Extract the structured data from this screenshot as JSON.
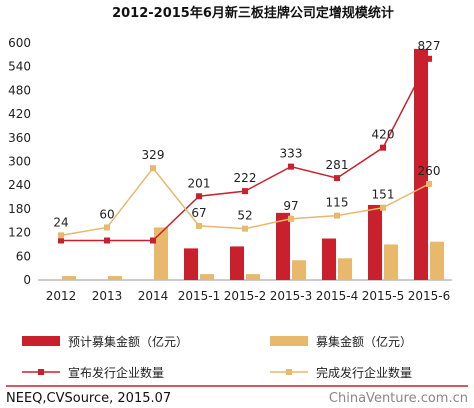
{
  "chart_data": {
    "type": "bar",
    "title": "2012-2015年6月新三板挂牌公司定增规模统计",
    "categories": [
      "2012",
      "2013",
      "2014",
      "2015-1",
      "2015-2",
      "2015-3",
      "2015-4",
      "2015-5",
      "2015-6"
    ],
    "ylim": [
      0,
      600
    ],
    "yticks": [
      0,
      60,
      120,
      180,
      240,
      300,
      360,
      420,
      480,
      540,
      600
    ],
    "grid": false,
    "legend_position": "bottom",
    "bar_series": [
      {
        "name": "预计募集金额（亿元）",
        "color": "#c8202c",
        "values": [
          0,
          0,
          0,
          80,
          85,
          170,
          105,
          190,
          585
        ]
      },
      {
        "name": "募集金额（亿元）",
        "color": "#e8b86d",
        "values": [
          10,
          10,
          133,
          15,
          15,
          50,
          55,
          90,
          97
        ]
      }
    ],
    "line_series": [
      {
        "name": "宣布发行企业数量",
        "color": "#c8202c",
        "values": [
          100,
          100,
          100,
          212,
          225,
          287,
          258,
          335,
          560
        ]
      },
      {
        "name": "完成发行企业数量",
        "color": "#e8b86d",
        "values": [
          113,
          133,
          283,
          137,
          130,
          155,
          163,
          183,
          243
        ]
      }
    ],
    "annotations": [
      {
        "text": "24",
        "category": "2012",
        "y": 113
      },
      {
        "text": "60",
        "category": "2013",
        "y": 133
      },
      {
        "text": "329",
        "category": "2014",
        "y": 283
      },
      {
        "text": "201",
        "category": "2015-1",
        "y": 212
      },
      {
        "text": "67",
        "category": "2015-1",
        "y": 137
      },
      {
        "text": "222",
        "category": "2015-2",
        "y": 225
      },
      {
        "text": "52",
        "category": "2015-2",
        "y": 130
      },
      {
        "text": "333",
        "category": "2015-3",
        "y": 287
      },
      {
        "text": "97",
        "category": "2015-3",
        "y": 155
      },
      {
        "text": "281",
        "category": "2015-4",
        "y": 258
      },
      {
        "text": "115",
        "category": "2015-4",
        "y": 163
      },
      {
        "text": "420",
        "category": "2015-5",
        "y": 335
      },
      {
        "text": "151",
        "category": "2015-5",
        "y": 183
      },
      {
        "text": "827",
        "category": "2015-6",
        "y": 560
      },
      {
        "text": "260",
        "category": "2015-6",
        "y": 243
      }
    ]
  },
  "footer": {
    "source": "NEEQ,CVSource, 2015.07",
    "watermark": "ChinaVenture.com.cn"
  }
}
